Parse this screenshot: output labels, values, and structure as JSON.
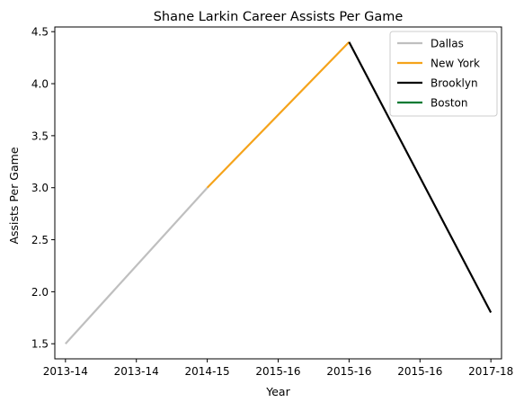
{
  "chart_data": {
    "type": "line",
    "title": "Shane Larkin Career Assists Per Game",
    "xlabel": "Year",
    "ylabel": "Assists Per Game",
    "x_tick_labels": [
      "2013-14",
      "2013-14",
      "2014-15",
      "2015-16",
      "2015-16",
      "2015-16",
      "2017-18"
    ],
    "xlim": [
      -0.15,
      6.15
    ],
    "ylim": [
      1.355,
      4.545
    ],
    "y_ticks": [
      "1.5",
      "2.0",
      "2.5",
      "3.0",
      "3.5",
      "4.0",
      "4.5"
    ],
    "grid": false,
    "legend_position": "top-right",
    "series": [
      {
        "name": "Dallas",
        "color": "#bfbfbf",
        "points": [
          [
            0,
            1.5
          ],
          [
            2,
            3.0
          ]
        ]
      },
      {
        "name": "New York",
        "color": "#f5a31a",
        "points": [
          [
            2,
            3.0
          ],
          [
            4,
            4.4
          ]
        ]
      },
      {
        "name": "Brooklyn",
        "color": "#000000",
        "points": [
          [
            4,
            4.4
          ],
          [
            6,
            1.8
          ]
        ]
      },
      {
        "name": "Boston",
        "color": "#007a33",
        "points": []
      }
    ]
  }
}
